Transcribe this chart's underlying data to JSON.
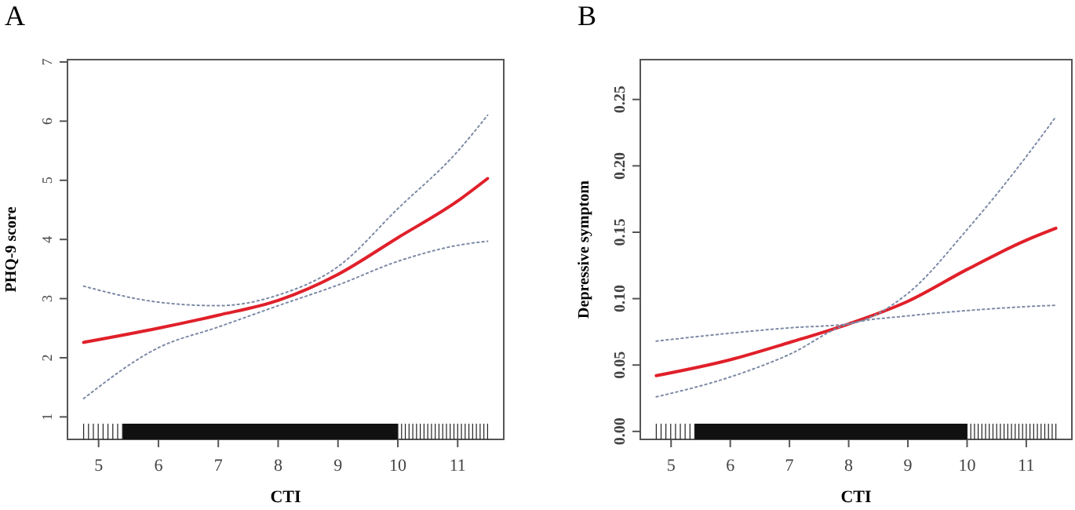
{
  "chart_data": [
    {
      "type": "line",
      "title": "A",
      "xlabel": "CTI",
      "ylabel": "PHQ-9 score",
      "x": [
        4.75,
        6,
        7,
        8,
        9,
        10,
        11,
        11.5
      ],
      "xlim": [
        4.48,
        11.77
      ],
      "xticks": [
        5,
        6,
        7,
        8,
        9,
        10,
        11
      ],
      "ylim": [
        0.62,
        7.04
      ],
      "yticks": [
        1,
        2,
        3,
        4,
        5,
        6,
        7
      ],
      "grid": false,
      "series": [
        {
          "color": "#e0202a",
          "line_style": "solid",
          "values": [
            2.26,
            2.5,
            2.72,
            2.97,
            3.41,
            4.03,
            4.65,
            5.03
          ]
        },
        {
          "color": "#7d8aa6",
          "line_style": "dotted",
          "values": [
            1.31,
            2.17,
            2.52,
            2.88,
            3.23,
            3.63,
            3.9,
            3.97
          ]
        },
        {
          "color": "#7d8aa6",
          "line_style": "dotted",
          "values": [
            3.21,
            2.94,
            2.88,
            3.06,
            3.54,
            4.52,
            5.49,
            6.1
          ]
        }
      ]
    },
    {
      "type": "line",
      "title": "B",
      "xlabel": "CTI",
      "ylabel": "Depressive symptom",
      "x": [
        4.75,
        6,
        7,
        8,
        9,
        10,
        11,
        11.5
      ],
      "xlim": [
        4.48,
        11.77
      ],
      "xticks": [
        5,
        6,
        7,
        8,
        9,
        10,
        11
      ],
      "ylim": [
        -0.006,
        0.28
      ],
      "yticks": [
        {
          "value": 0,
          "label": "0.00"
        },
        {
          "value": 0.05,
          "label": "0.05"
        },
        {
          "value": 0.1,
          "label": "0.10"
        },
        {
          "value": 0.15,
          "label": "0.15"
        },
        {
          "value": 0.2,
          "label": "0.20"
        },
        {
          "value": 0.25,
          "label": "0.25"
        }
      ],
      "grid": false,
      "series": [
        {
          "color": "#e0202a",
          "line_style": "solid",
          "values": [
            0.042,
            0.054,
            0.067,
            0.081,
            0.098,
            0.122,
            0.144,
            0.153
          ]
        },
        {
          "color": "#7d8aa6",
          "line_style": "dotted",
          "values": [
            0.026,
            0.041,
            0.058,
            0.081,
            0.087,
            0.091,
            0.094,
            0.095
          ]
        },
        {
          "color": "#7d8aa6",
          "line_style": "dotted",
          "values": [
            0.068,
            0.074,
            0.078,
            0.081,
            0.104,
            0.152,
            0.207,
            0.237
          ]
        }
      ]
    }
  ]
}
